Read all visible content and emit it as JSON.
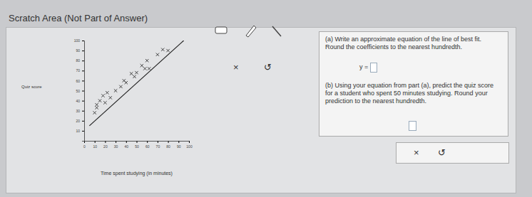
{
  "page": {
    "title": "Scratch Area (Not Part of Answer)",
    "toolbar": {
      "clear": "×",
      "undo": "↺"
    },
    "question_a": "(a) Write an approximate equation of the line of best fit. Round the coefficients to the nearest hundredth.",
    "answer_a_prefix": "y =",
    "question_b": "(b) Using your equation from part (a), predict the quiz score for a student who spent 50 minutes studying. Round your prediction to the nearest hundredth.",
    "buttons": {
      "clear": "×",
      "undo": "↺"
    }
  },
  "chart_data": {
    "type": "scatter",
    "x_label": "Time spent studying (in minutes)",
    "y_label": "Quiz score",
    "x": [
      10,
      12,
      15,
      12,
      20,
      22,
      25,
      18,
      30,
      35,
      38,
      40,
      45,
      48,
      50,
      55,
      58,
      60,
      62,
      70,
      75,
      80
    ],
    "values": [
      28,
      33,
      40,
      36,
      38,
      48,
      43,
      45,
      50,
      54,
      60,
      58,
      67,
      64,
      68,
      75,
      72,
      80,
      72,
      86,
      91,
      90
    ],
    "marker": "x",
    "color": "#333333",
    "fit_line": {
      "x": [
        5,
        95
      ],
      "values": [
        15,
        100
      ]
    },
    "xlim": [
      0,
      100
    ],
    "xticks": [
      0,
      10,
      20,
      30,
      40,
      50,
      60,
      70,
      80,
      90,
      100
    ],
    "ylim": [
      0,
      100
    ],
    "yticks": [
      10,
      20,
      30,
      40,
      50,
      60,
      70,
      80,
      90,
      100
    ]
  }
}
